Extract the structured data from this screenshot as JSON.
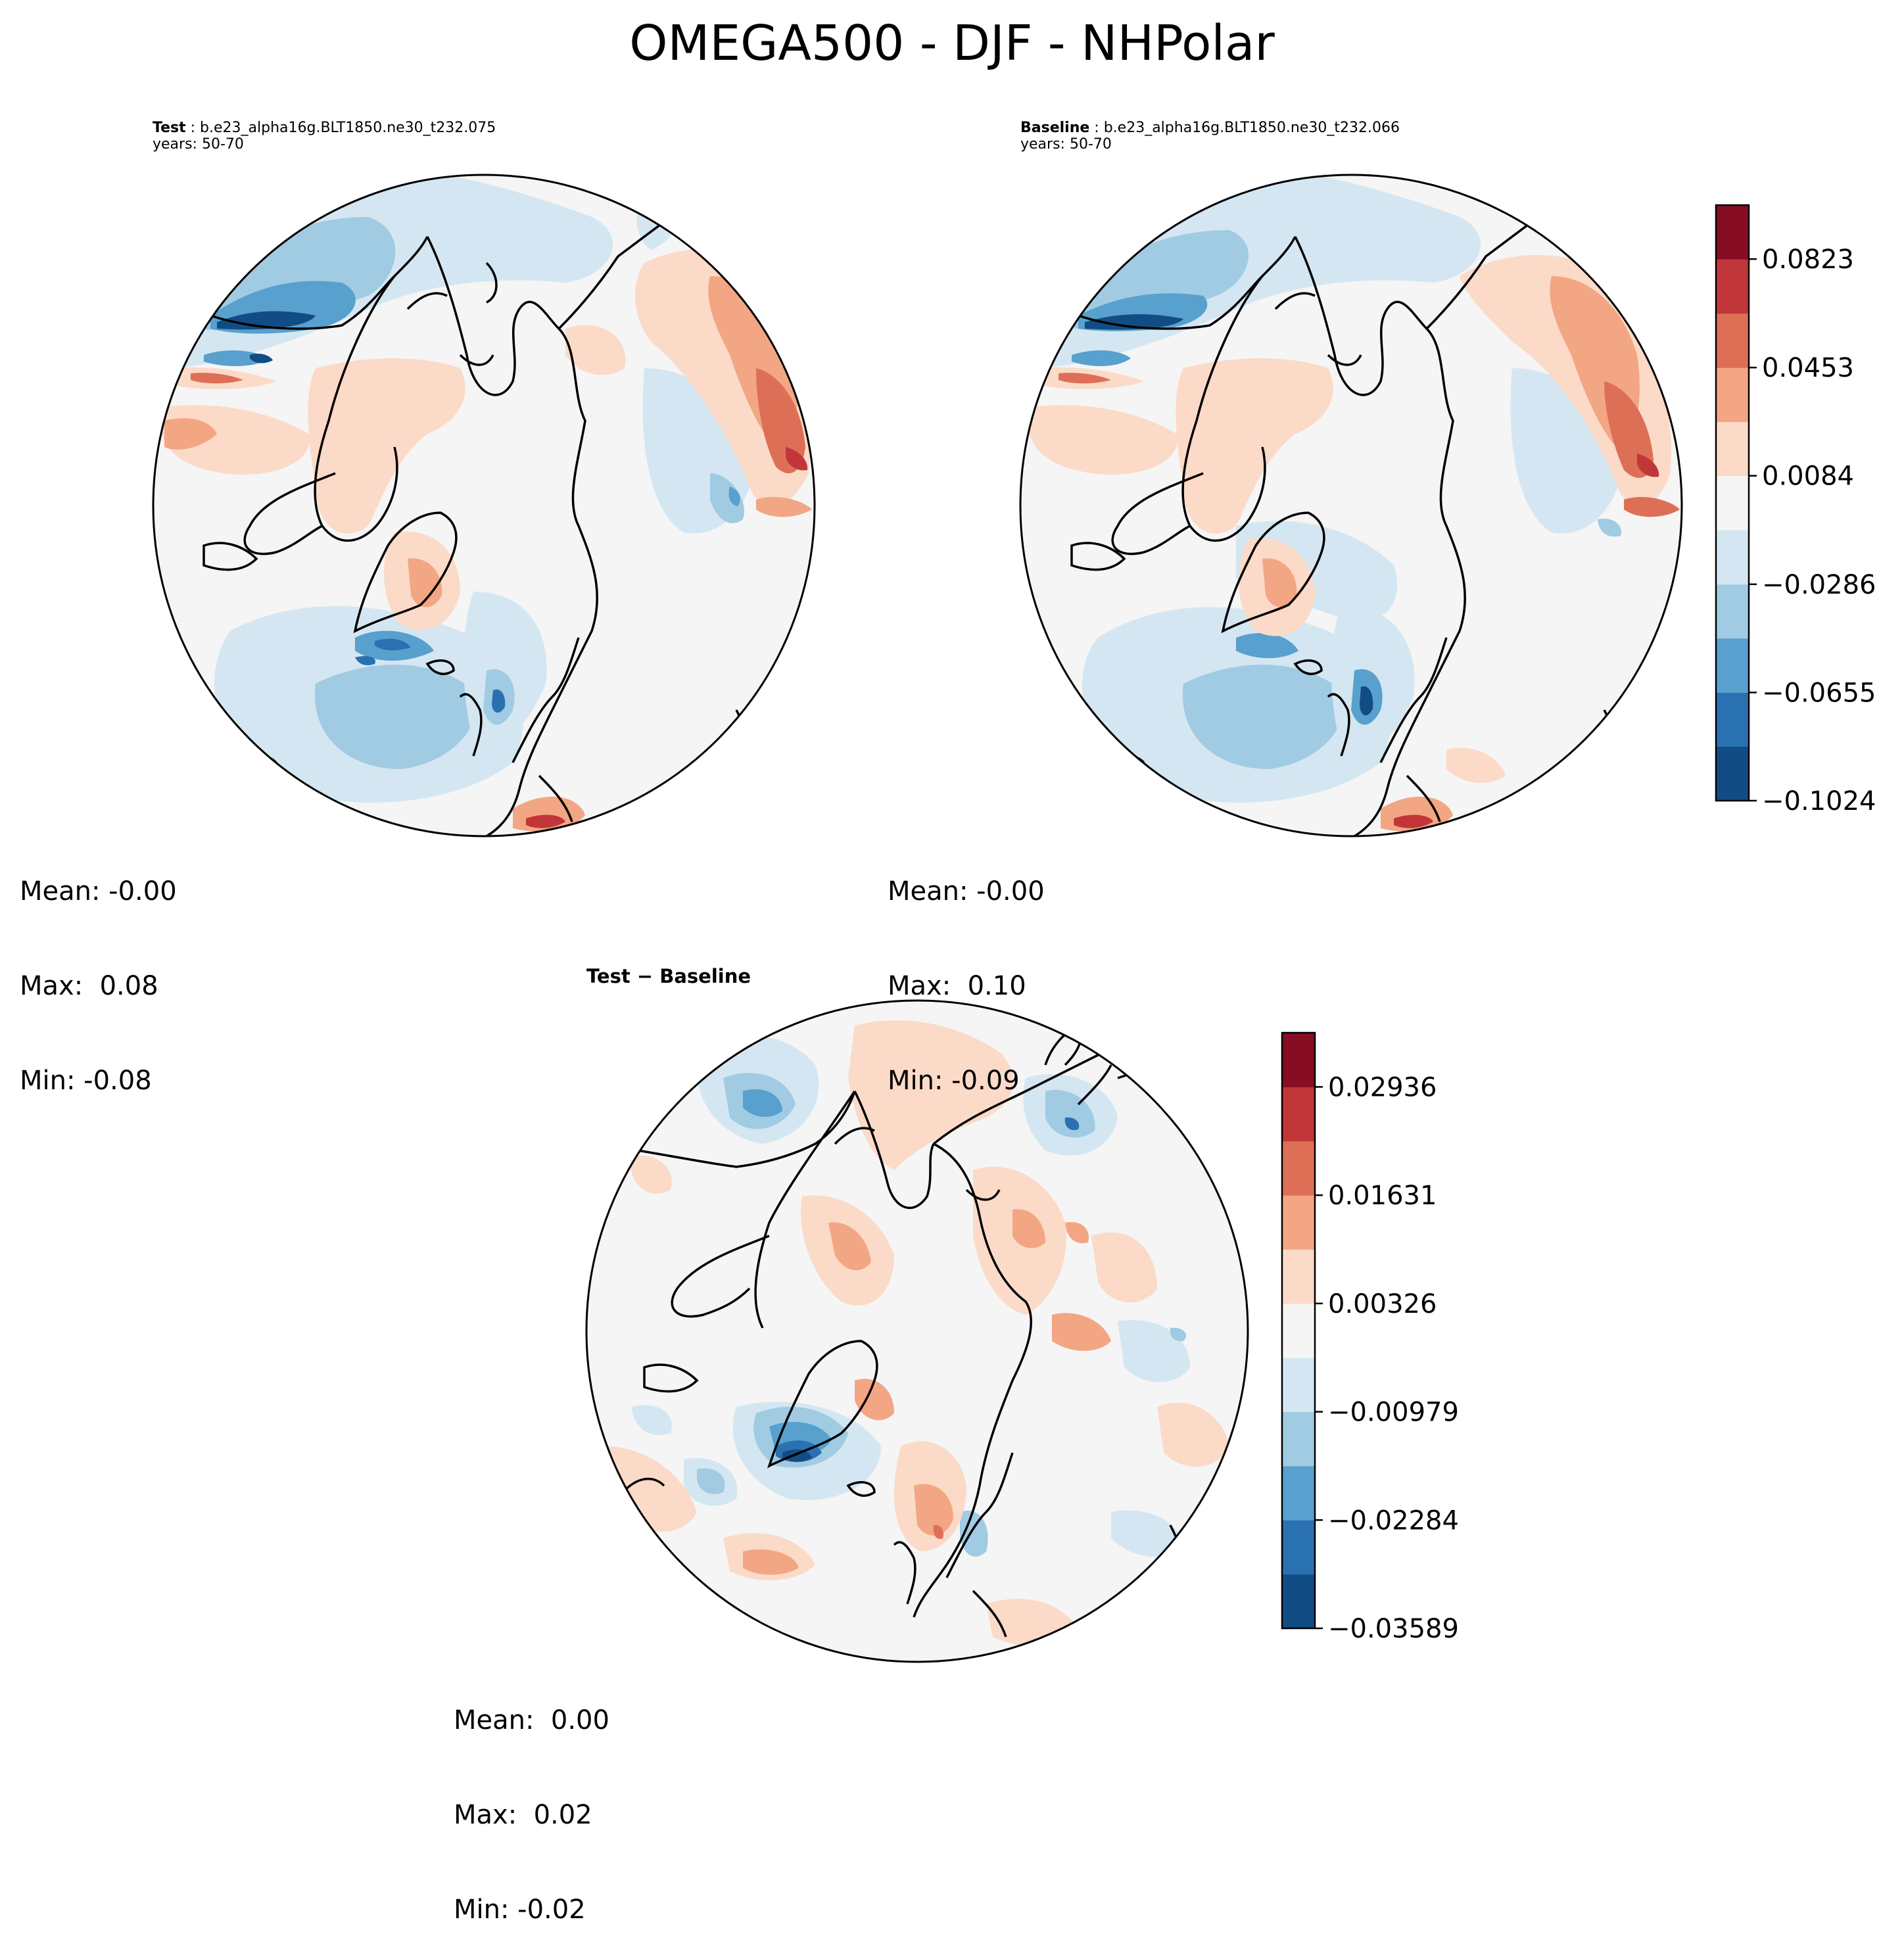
{
  "title": "OMEGA500 - DJF - NHPolar",
  "panels": {
    "test": {
      "label": "Test",
      "case": "b.e23_alpha16g.BLT1850.ne30_t232.075",
      "years": "years: 50-70",
      "mean": "Mean: -0.00",
      "max": "Max:  0.08",
      "min": "Min: -0.08"
    },
    "baseline": {
      "label": "Baseline",
      "case": "b.e23_alpha16g.BLT1850.ne30_t232.066",
      "years": "years: 50-70",
      "mean": "Mean: -0.00",
      "max": "Max:  0.10",
      "min": "Min: -0.09"
    },
    "diff": {
      "label": "Test − Baseline",
      "mean": "Mean:  0.00",
      "max": "Max:  0.02",
      "min": "Min: -0.02"
    }
  },
  "chart_data": [
    {
      "type": "heatmap",
      "title": "OMEGA500 - DJF - NHPolar",
      "projection": "north polar stereographic",
      "colormap": "RdBu_r",
      "colorbar_levels": [
        -0.1024,
        -0.0839,
        -0.0655,
        -0.047,
        -0.0286,
        -0.0101,
        0.0084,
        0.0268,
        0.0453,
        0.0638,
        0.0823,
        0.1007
      ],
      "colorbar_ticks": [
        "−0.1024",
        "−0.0655",
        "−0.0286",
        "0.0084",
        "0.0453",
        "0.0823"
      ],
      "colors": [
        "#124c84",
        "#2a71b2",
        "#58a0cd",
        "#a0cbe2",
        "#d4e6f1",
        "#f5f5f5",
        "#fbdac8",
        "#f3a683",
        "#de6f57",
        "#c13639",
        "#860d24"
      ],
      "panels": [
        "Test",
        "Baseline"
      ]
    },
    {
      "type": "heatmap",
      "title": "Test − Baseline",
      "projection": "north polar stereographic",
      "colormap": "RdBu_r",
      "colorbar_levels": [
        -0.03589,
        -0.02937,
        -0.02284,
        -0.01632,
        -0.00979,
        -0.00327,
        0.00326,
        0.00978,
        0.01631,
        0.02284,
        0.02936,
        0.03589
      ],
      "colorbar_ticks": [
        "−0.03589",
        "−0.02284",
        "−0.00979",
        "0.00326",
        "0.01631",
        "0.02936"
      ],
      "colors": [
        "#124c84",
        "#2a71b2",
        "#58a0cd",
        "#a0cbe2",
        "#d4e6f1",
        "#f5f5f5",
        "#fbdac8",
        "#f3a683",
        "#de6f57",
        "#c13639",
        "#860d24"
      ]
    }
  ]
}
